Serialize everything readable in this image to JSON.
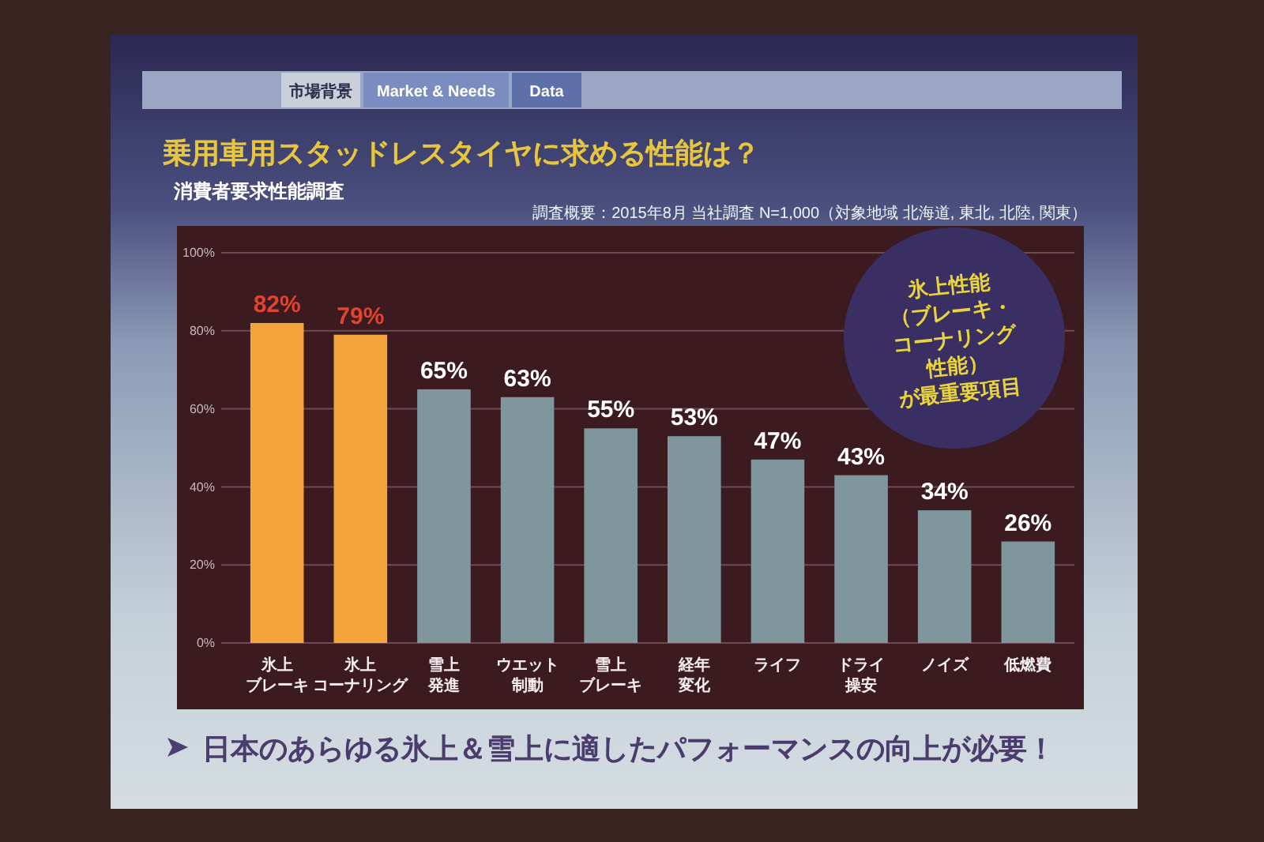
{
  "chart_data": {
    "type": "bar",
    "title": "乗用車用スタッドレスタイヤに求める性能は？",
    "subtitle": "消費者要求性能調査",
    "categories": [
      "氷上ブレーキ",
      "氷上コーナリング",
      "雪上発進",
      "ウエット制動",
      "雪上ブレーキ",
      "経年変化",
      "ライフ",
      "ドライ操安",
      "ノイズ",
      "低燃費"
    ],
    "values": [
      82,
      79,
      65,
      63,
      55,
      53,
      47,
      43,
      34,
      26
    ],
    "colors": [
      "#f2a33a",
      "#f2a33a",
      "#7f979c",
      "#7f979c",
      "#7f979c",
      "#7f979c",
      "#7f979c",
      "#7f979c",
      "#7f979c",
      "#7f979c"
    ],
    "value_labels": [
      "82%",
      "79%",
      "65%",
      "63%",
      "55%",
      "53%",
      "47%",
      "43%",
      "34%",
      "26%"
    ],
    "ylim": [
      0,
      100
    ],
    "yticks": [
      {
        "value": 0,
        "label": "0%"
      },
      {
        "value": 20,
        "label": "20%"
      },
      {
        "value": 40,
        "label": "40%"
      },
      {
        "value": 60,
        "label": "60%"
      },
      {
        "value": 80,
        "label": "80%"
      },
      {
        "value": 100,
        "label": "100%"
      }
    ],
    "grid": "y",
    "annotations": [
      "市場背景",
      "Market & Needs",
      "Data",
      "調査概要：2015年8月 当社調査 N=1,000（対象地域 北海道, 東北, 北陸, 関東）",
      "氷上性能（ブレーキ・コーナリング性能）が最重要項目",
      "日本のあらゆる氷上＆雪上に適したパフォーマンスの向上が必要！"
    ]
  }
}
